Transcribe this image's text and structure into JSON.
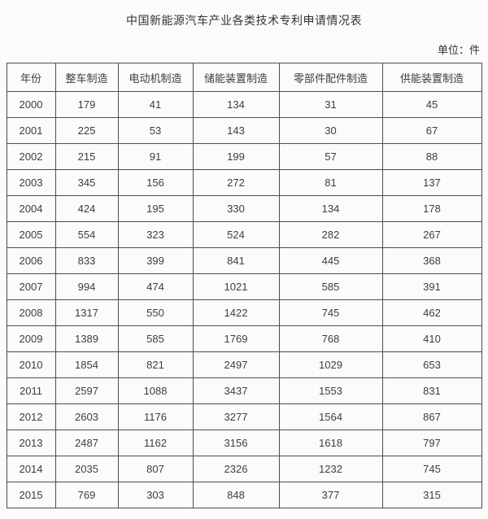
{
  "chart_data": {
    "type": "table",
    "title": "中国新能源汽车产业各类技术专利申请情况表",
    "unit_label": "单位：件",
    "columns": [
      "年份",
      "整车制造",
      "电动机制造",
      "储能装置制造",
      "零部件配件制造",
      "供能装置制造"
    ],
    "rows": [
      [
        2000,
        179,
        41,
        134,
        31,
        45
      ],
      [
        2001,
        225,
        53,
        143,
        30,
        67
      ],
      [
        2002,
        215,
        91,
        199,
        57,
        88
      ],
      [
        2003,
        345,
        156,
        272,
        81,
        137
      ],
      [
        2004,
        424,
        195,
        330,
        134,
        178
      ],
      [
        2005,
        554,
        323,
        524,
        282,
        267
      ],
      [
        2006,
        833,
        399,
        841,
        445,
        368
      ],
      [
        2007,
        994,
        474,
        1021,
        585,
        391
      ],
      [
        2008,
        1317,
        550,
        1422,
        745,
        462
      ],
      [
        2009,
        1389,
        585,
        1769,
        768,
        410
      ],
      [
        2010,
        1854,
        821,
        2497,
        1029,
        653
      ],
      [
        2011,
        2597,
        1088,
        3437,
        1553,
        831
      ],
      [
        2012,
        2603,
        1176,
        3277,
        1564,
        867
      ],
      [
        2013,
        2487,
        1162,
        3156,
        1618,
        797
      ],
      [
        2014,
        2035,
        807,
        2326,
        1232,
        745
      ],
      [
        2015,
        769,
        303,
        848,
        377,
        315
      ]
    ]
  },
  "colors": {
    "background": "#fcfbf9",
    "border": "#4d4d4d",
    "text": "#3d3d3d"
  }
}
